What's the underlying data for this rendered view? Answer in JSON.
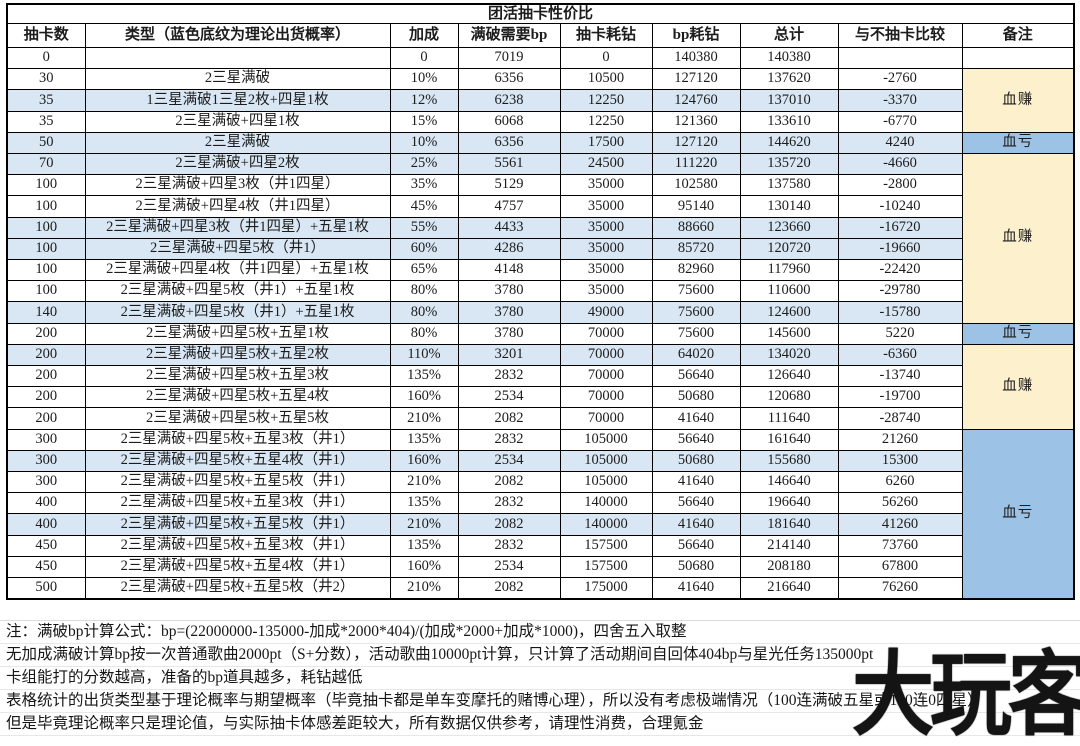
{
  "title": "团活抽卡性价比",
  "colors": {
    "highlight_row": "#d9e7f4",
    "profit_bg": "#fdf0cc",
    "loss_bg": "#9cc3e5"
  },
  "table": {
    "columns": [
      "抽卡数",
      "类型（蓝色底纹为理论出货概率）",
      "加成",
      "满破需要bp",
      "抽卡耗钻",
      "bp耗钻",
      "总计",
      "与不抽卡比较",
      "备注"
    ],
    "rows": [
      {
        "draws": "0",
        "type": "",
        "bonus": "0",
        "bp_needed": "7019",
        "draw_gems": "0",
        "bp_gems": "140380",
        "total": "140380",
        "vs_no_draw": "",
        "highlight": false
      },
      {
        "draws": "30",
        "type": "2三星满破",
        "bonus": "10%",
        "bp_needed": "6356",
        "draw_gems": "10500",
        "bp_gems": "127120",
        "total": "137620",
        "vs_no_draw": "-2760",
        "highlight": false
      },
      {
        "draws": "35",
        "type": "1三星满破1三星2枚+四星1枚",
        "bonus": "12%",
        "bp_needed": "6238",
        "draw_gems": "12250",
        "bp_gems": "124760",
        "total": "137010",
        "vs_no_draw": "-3370",
        "highlight": true
      },
      {
        "draws": "35",
        "type": "2三星满破+四星1枚",
        "bonus": "15%",
        "bp_needed": "6068",
        "draw_gems": "12250",
        "bp_gems": "121360",
        "total": "133610",
        "vs_no_draw": "-6770",
        "highlight": false
      },
      {
        "draws": "50",
        "type": "2三星满破",
        "bonus": "10%",
        "bp_needed": "6356",
        "draw_gems": "17500",
        "bp_gems": "127120",
        "total": "144620",
        "vs_no_draw": "4240",
        "highlight": true
      },
      {
        "draws": "70",
        "type": "2三星满破+四星2枚",
        "bonus": "25%",
        "bp_needed": "5561",
        "draw_gems": "24500",
        "bp_gems": "111220",
        "total": "135720",
        "vs_no_draw": "-4660",
        "highlight": true
      },
      {
        "draws": "100",
        "type": "2三星满破+四星3枚（井1四星）",
        "bonus": "35%",
        "bp_needed": "5129",
        "draw_gems": "35000",
        "bp_gems": "102580",
        "total": "137580",
        "vs_no_draw": "-2800",
        "highlight": false
      },
      {
        "draws": "100",
        "type": "2三星满破+四星4枚（井1四星）",
        "bonus": "45%",
        "bp_needed": "4757",
        "draw_gems": "35000",
        "bp_gems": "95140",
        "total": "130140",
        "vs_no_draw": "-10240",
        "highlight": false
      },
      {
        "draws": "100",
        "type": "2三星满破+四星3枚（井1四星）+五星1枚",
        "bonus": "55%",
        "bp_needed": "4433",
        "draw_gems": "35000",
        "bp_gems": "88660",
        "total": "123660",
        "vs_no_draw": "-16720",
        "highlight": true
      },
      {
        "draws": "100",
        "type": "2三星满破+四星5枚（井1）",
        "bonus": "60%",
        "bp_needed": "4286",
        "draw_gems": "35000",
        "bp_gems": "85720",
        "total": "120720",
        "vs_no_draw": "-19660",
        "highlight": true
      },
      {
        "draws": "100",
        "type": "2三星满破+四星4枚（井1四星）+五星1枚",
        "bonus": "65%",
        "bp_needed": "4148",
        "draw_gems": "35000",
        "bp_gems": "82960",
        "total": "117960",
        "vs_no_draw": "-22420",
        "highlight": false
      },
      {
        "draws": "100",
        "type": "2三星满破+四星5枚（井1）+五星1枚",
        "bonus": "80%",
        "bp_needed": "3780",
        "draw_gems": "35000",
        "bp_gems": "75600",
        "total": "110600",
        "vs_no_draw": "-29780",
        "highlight": false
      },
      {
        "draws": "140",
        "type": "2三星满破+四星5枚（井1）+五星1枚",
        "bonus": "80%",
        "bp_needed": "3780",
        "draw_gems": "49000",
        "bp_gems": "75600",
        "total": "124600",
        "vs_no_draw": "-15780",
        "highlight": true
      },
      {
        "draws": "200",
        "type": "2三星满破+四星5枚+五星1枚",
        "bonus": "80%",
        "bp_needed": "3780",
        "draw_gems": "70000",
        "bp_gems": "75600",
        "total": "145600",
        "vs_no_draw": "5220",
        "highlight": false
      },
      {
        "draws": "200",
        "type": "2三星满破+四星5枚+五星2枚",
        "bonus": "110%",
        "bp_needed": "3201",
        "draw_gems": "70000",
        "bp_gems": "64020",
        "total": "134020",
        "vs_no_draw": "-6360",
        "highlight": true
      },
      {
        "draws": "200",
        "type": "2三星满破+四星5枚+五星3枚",
        "bonus": "135%",
        "bp_needed": "2832",
        "draw_gems": "70000",
        "bp_gems": "56640",
        "total": "126640",
        "vs_no_draw": "-13740",
        "highlight": false
      },
      {
        "draws": "200",
        "type": "2三星满破+四星5枚+五星4枚",
        "bonus": "160%",
        "bp_needed": "2534",
        "draw_gems": "70000",
        "bp_gems": "50680",
        "total": "120680",
        "vs_no_draw": "-19700",
        "highlight": false
      },
      {
        "draws": "200",
        "type": "2三星满破+四星5枚+五星5枚",
        "bonus": "210%",
        "bp_needed": "2082",
        "draw_gems": "70000",
        "bp_gems": "41640",
        "total": "111640",
        "vs_no_draw": "-28740",
        "highlight": false
      },
      {
        "draws": "300",
        "type": "2三星满破+四星5枚+五星3枚（井1）",
        "bonus": "135%",
        "bp_needed": "2832",
        "draw_gems": "105000",
        "bp_gems": "56640",
        "total": "161640",
        "vs_no_draw": "21260",
        "highlight": false
      },
      {
        "draws": "300",
        "type": "2三星满破+四星5枚+五星4枚（井1）",
        "bonus": "160%",
        "bp_needed": "2534",
        "draw_gems": "105000",
        "bp_gems": "50680",
        "total": "155680",
        "vs_no_draw": "15300",
        "highlight": true
      },
      {
        "draws": "300",
        "type": "2三星满破+四星5枚+五星5枚（井1）",
        "bonus": "210%",
        "bp_needed": "2082",
        "draw_gems": "105000",
        "bp_gems": "41640",
        "total": "146640",
        "vs_no_draw": "6260",
        "highlight": false
      },
      {
        "draws": "400",
        "type": "2三星满破+四星5枚+五星3枚（井1）",
        "bonus": "135%",
        "bp_needed": "2832",
        "draw_gems": "140000",
        "bp_gems": "56640",
        "total": "196640",
        "vs_no_draw": "56260",
        "highlight": false
      },
      {
        "draws": "400",
        "type": "2三星满破+四星5枚+五星5枚（井1）",
        "bonus": "210%",
        "bp_needed": "2082",
        "draw_gems": "140000",
        "bp_gems": "41640",
        "total": "181640",
        "vs_no_draw": "41260",
        "highlight": true
      },
      {
        "draws": "450",
        "type": "2三星满破+四星5枚+五星3枚（井1）",
        "bonus": "135%",
        "bp_needed": "2832",
        "draw_gems": "157500",
        "bp_gems": "56640",
        "total": "214140",
        "vs_no_draw": "73760",
        "highlight": false
      },
      {
        "draws": "450",
        "type": "2三星满破+四星5枚+五星4枚（井1）",
        "bonus": "160%",
        "bp_needed": "2534",
        "draw_gems": "157500",
        "bp_gems": "50680",
        "total": "208180",
        "vs_no_draw": "67800",
        "highlight": false
      },
      {
        "draws": "500",
        "type": "2三星满破+四星5枚+五星5枚（井2）",
        "bonus": "210%",
        "bp_needed": "2082",
        "draw_gems": "175000",
        "bp_gems": "41640",
        "total": "216640",
        "vs_no_draw": "76260",
        "highlight": false
      }
    ],
    "remarks": [
      {
        "row": 0,
        "span": 1,
        "label": "",
        "style": "none"
      },
      {
        "row": 1,
        "span": 3,
        "label": "血赚",
        "style": "profit"
      },
      {
        "row": 4,
        "span": 1,
        "label": "血亏",
        "style": "loss"
      },
      {
        "row": 5,
        "span": 8,
        "label": "血赚",
        "style": "profit"
      },
      {
        "row": 13,
        "span": 1,
        "label": "血亏",
        "style": "loss"
      },
      {
        "row": 14,
        "span": 4,
        "label": "血赚",
        "style": "profit"
      },
      {
        "row": 18,
        "span": 8,
        "label": "血亏",
        "style": "loss"
      }
    ]
  },
  "notes": [
    "注：满破bp计算公式：bp=(22000000-135000-加成*2000*404)/(加成*2000+加成*1000)，四舍五入取整",
    "无加成满破计算bp按一次普通歌曲2000pt（S+分数），活动歌曲10000pt计算，只计算了活动期间自回体404bp与星光任务135000pt",
    "卡组能打的分数越高，准备的bp道具越多，耗钻越低",
    "表格统计的出货类型基于理论概率与期望概率（毕竟抽卡都是单车变摩托的赌博心理），所以没有考虑极端情况（100连满破五星或140连0四星）",
    "但是毕竟理论概率只是理论值，与实际抽卡体感差距较大，所有数据仅供参考，请理性消费，合理氪金"
  ],
  "watermark": "大玩客"
}
